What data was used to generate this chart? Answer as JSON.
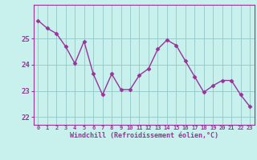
{
  "x": [
    0,
    1,
    2,
    3,
    4,
    5,
    6,
    7,
    8,
    9,
    10,
    11,
    12,
    13,
    14,
    15,
    16,
    17,
    18,
    19,
    20,
    21,
    22,
    23
  ],
  "y": [
    25.7,
    25.4,
    25.2,
    24.7,
    24.05,
    24.9,
    23.65,
    22.85,
    23.65,
    23.05,
    23.05,
    23.6,
    23.85,
    24.6,
    24.95,
    24.75,
    24.15,
    23.55,
    22.95,
    23.2,
    23.4,
    23.4,
    22.85,
    22.4
  ],
  "line_color": "#993399",
  "marker": "D",
  "marker_size": 2.5,
  "bg_color": "#c8f0ec",
  "grid_color": "#99cccc",
  "xlabel": "Windchill (Refroidissement éolien,°C)",
  "xlabel_color": "#993399",
  "tick_color": "#993399",
  "ylim": [
    21.7,
    26.3
  ],
  "xlim": [
    -0.5,
    23.5
  ],
  "yticks": [
    22,
    23,
    24,
    25
  ],
  "xticks": [
    0,
    1,
    2,
    3,
    4,
    5,
    6,
    7,
    8,
    9,
    10,
    11,
    12,
    13,
    14,
    15,
    16,
    17,
    18,
    19,
    20,
    21,
    22,
    23
  ],
  "spine_color": "#993399",
  "line_width": 1.0
}
